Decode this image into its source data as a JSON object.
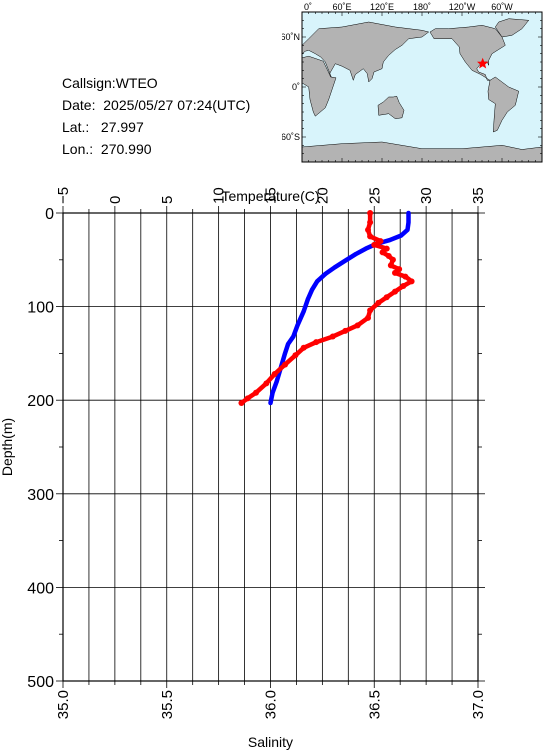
{
  "info": {
    "callsign": "Callsign:WTEO",
    "date": "Date:  2025/05/27 07:24(UTC)",
    "lat": "Lat.:   27.997",
    "lon": "Lon.:  270.990"
  },
  "map": {
    "top_labels": [
      "0˚",
      "60˚E",
      "120˚E",
      "180˚",
      "120˚W",
      "60˚W"
    ],
    "left_labels": [
      "60˚N",
      "0˚",
      "60˚S"
    ],
    "ocean_color": "#d8f4fb",
    "land_color": "#b3b3b3",
    "station": {
      "lon": 270.99,
      "lat": 27.997
    }
  },
  "chart_data": {
    "type": "line",
    "ylabel": "Depth(m)",
    "x_top_label": "Temperature(C)",
    "x_bottom_label": "Salinity",
    "ylim": [
      0,
      500
    ],
    "y_ticks": [
      "0",
      "100",
      "200",
      "300",
      "400",
      "500"
    ],
    "temp_lim": [
      -5,
      35
    ],
    "temp_ticks": [
      "−5",
      "0",
      "5",
      "10",
      "15",
      "20",
      "25",
      "30",
      "35"
    ],
    "sal_lim": [
      35.0,
      37.0
    ],
    "sal_ticks": [
      "35.0",
      "35.5",
      "36.0",
      "36.5",
      "37.0"
    ],
    "series": [
      {
        "name": "Temperature",
        "axis": "top",
        "color": "#0000ff",
        "points": [
          [
            28.3,
            0
          ],
          [
            28.3,
            10
          ],
          [
            28.2,
            18
          ],
          [
            27.6,
            24
          ],
          [
            26.5,
            29
          ],
          [
            25.2,
            33
          ],
          [
            24.2,
            38
          ],
          [
            23.2,
            44
          ],
          [
            22.2,
            51
          ],
          [
            21.2,
            58
          ],
          [
            20.3,
            65
          ],
          [
            19.5,
            73
          ],
          [
            19.0,
            82
          ],
          [
            18.6,
            92
          ],
          [
            18.2,
            105
          ],
          [
            17.6,
            120
          ],
          [
            17.2,
            132
          ],
          [
            16.7,
            140
          ],
          [
            16.4,
            150
          ],
          [
            16.0,
            165
          ],
          [
            15.6,
            180
          ],
          [
            15.2,
            192
          ],
          [
            15.0,
            203
          ]
        ]
      },
      {
        "name": "Salinity",
        "axis": "bottom",
        "color": "#ff0000",
        "points": [
          [
            36.48,
            0
          ],
          [
            36.48,
            10
          ],
          [
            36.47,
            18
          ],
          [
            36.48,
            25
          ],
          [
            36.53,
            30
          ],
          [
            36.5,
            34
          ],
          [
            36.56,
            38
          ],
          [
            36.54,
            42
          ],
          [
            36.57,
            46
          ],
          [
            36.59,
            50
          ],
          [
            36.58,
            56
          ],
          [
            36.62,
            60
          ],
          [
            36.6,
            64
          ],
          [
            36.65,
            68
          ],
          [
            36.68,
            73
          ],
          [
            36.64,
            78
          ],
          [
            36.6,
            84
          ],
          [
            36.56,
            90
          ],
          [
            36.52,
            96
          ],
          [
            36.48,
            104
          ],
          [
            36.47,
            112
          ],
          [
            36.42,
            120
          ],
          [
            36.36,
            126
          ],
          [
            36.3,
            132
          ],
          [
            36.22,
            138
          ],
          [
            36.16,
            144
          ],
          [
            36.12,
            152
          ],
          [
            36.07,
            162
          ],
          [
            36.02,
            172
          ],
          [
            35.98,
            182
          ],
          [
            35.93,
            192
          ],
          [
            35.89,
            198
          ],
          [
            35.86,
            203
          ]
        ]
      }
    ],
    "grid": true
  }
}
